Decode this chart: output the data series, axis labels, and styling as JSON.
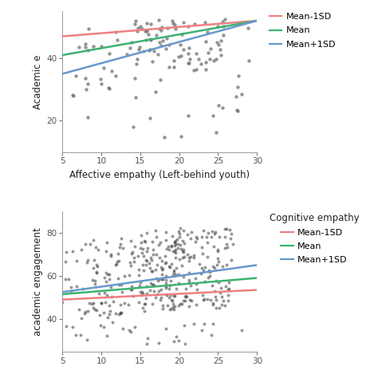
{
  "top_plot": {
    "xlabel": "Affective empathy (Left-behind youth)",
    "ylabel": "Academic e",
    "xlim": [
      5,
      30
    ],
    "ylim": [
      10,
      55
    ],
    "yticks": [
      20,
      40
    ],
    "xticks": [
      5,
      10,
      15,
      20,
      25,
      30
    ],
    "lines": {
      "mean_minus_1sd": {
        "x": [
          5,
          30
        ],
        "y": [
          47.0,
          52.0
        ],
        "color": "#F08080",
        "label": "Mean-1SD"
      },
      "mean": {
        "x": [
          5,
          30
        ],
        "y": [
          41.0,
          52.0
        ],
        "color": "#3CB371",
        "label": "Mean"
      },
      "mean_plus_1sd": {
        "x": [
          5,
          30
        ],
        "y": [
          35.0,
          52.0
        ],
        "color": "#6699CC",
        "label": "Mean+1SD"
      }
    },
    "scatter_seed": 42,
    "scatter_color": "#707070",
    "scatter_alpha": 0.75,
    "scatter_size": 10
  },
  "bottom_plot": {
    "xlabel": "",
    "ylabel": "academic engagement",
    "xlim": [
      5,
      30
    ],
    "ylim": [
      25,
      90
    ],
    "yticks": [
      40,
      60,
      80
    ],
    "xticks": [
      5,
      10,
      15,
      20,
      25,
      30
    ],
    "legend_title": "Cognitive empathy",
    "lines": {
      "mean_minus_1sd": {
        "x": [
          5,
          30
        ],
        "y": [
          49.0,
          53.5
        ],
        "color": "#F08080",
        "label": "Mean-1SD"
      },
      "mean": {
        "x": [
          5,
          30
        ],
        "y": [
          51.5,
          59.0
        ],
        "color": "#3CB371",
        "label": "Mean"
      },
      "mean_plus_1sd": {
        "x": [
          5,
          30
        ],
        "y": [
          52.5,
          65.0
        ],
        "color": "#6699CC",
        "label": "Mean+1SD"
      }
    },
    "scatter_seed": 7,
    "scatter_color": "#404040",
    "scatter_alpha": 0.55,
    "scatter_size": 8
  },
  "fig_bg": "#FFFFFF",
  "plot_bg": "#FFFFFF",
  "font_family": "DejaVu Sans",
  "font_size": 8.5
}
